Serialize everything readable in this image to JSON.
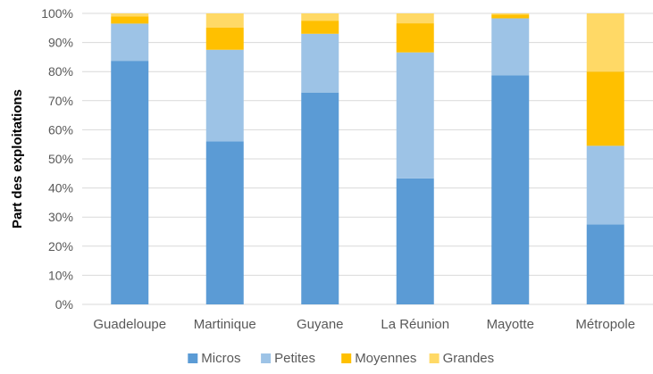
{
  "chart_data": {
    "type": "bar",
    "stacked": true,
    "normalized": true,
    "categories": [
      "Guadeloupe",
      "Martinique",
      "Guyane",
      "La Réunion",
      "Mayotte",
      "Métropole"
    ],
    "series": [
      {
        "name": "Micros",
        "color": "#5b9bd5",
        "values": [
          83.7,
          56.0,
          72.8,
          43.3,
          78.7,
          27.5
        ]
      },
      {
        "name": "Petites",
        "color": "#9dc3e6",
        "values": [
          12.8,
          31.5,
          20.2,
          43.3,
          19.6,
          27.0
        ]
      },
      {
        "name": "Moyennes",
        "color": "#ffc000",
        "values": [
          2.5,
          7.6,
          4.5,
          10.0,
          1.3,
          25.5
        ]
      },
      {
        "name": "Grandes",
        "color": "#ffd966",
        "values": [
          1.0,
          4.9,
          2.5,
          3.4,
          0.4,
          20.0
        ]
      }
    ],
    "ylabel": "Part des exploitations",
    "xlabel": "",
    "ylim": [
      0,
      100
    ],
    "yticks": [
      "0%",
      "10%",
      "20%",
      "30%",
      "40%",
      "50%",
      "60%",
      "70%",
      "80%",
      "90%",
      "100%"
    ],
    "grid": true,
    "legend_position": "bottom"
  }
}
